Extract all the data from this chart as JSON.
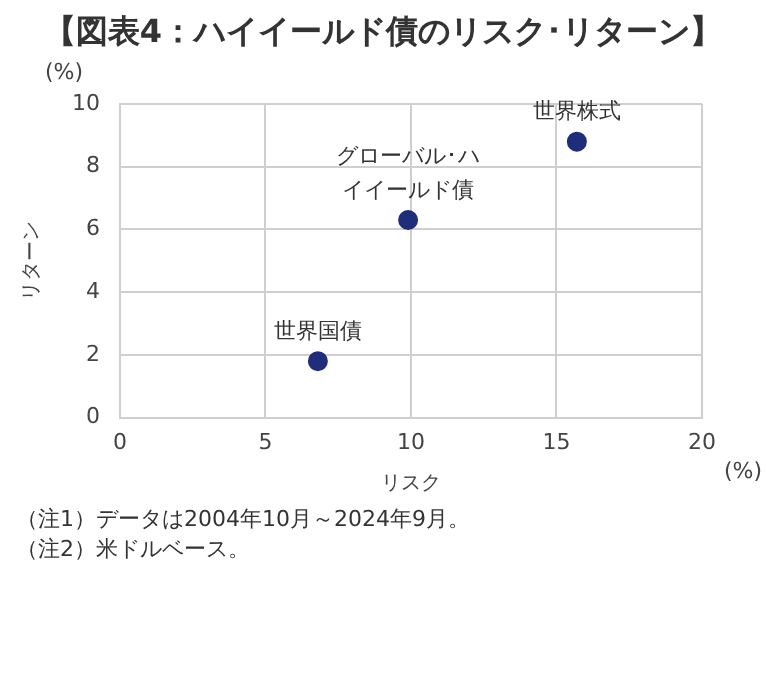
{
  "chart_data": {
    "type": "scatter",
    "title": "【図表4：ハイイールド債のリスク･リターン】",
    "xlabel": "リスク",
    "ylabel": "リターン",
    "x": [
      6.8,
      9.9,
      15.7
    ],
    "series": [
      {
        "color": "#1f2d7b",
        "values": [
          1.8,
          6.3,
          8.8
        ]
      }
    ],
    "xlim": [
      0,
      20
    ],
    "xticks": [
      0,
      5,
      10,
      15,
      20
    ],
    "ylim": [
      0,
      10
    ],
    "yticks": [
      0,
      2,
      4,
      6,
      8,
      10
    ],
    "grid": true,
    "legend": false,
    "marker": "circle",
    "annotations": [
      {
        "text": "世界国債",
        "x": 6.8,
        "y": 1.8
      },
      {
        "text": "グローバル･ハイイールド債",
        "x": 9.9,
        "y": 6.3
      },
      {
        "text": "世界株式",
        "x": 15.7,
        "y": 8.8
      },
      "(%)",
      "(%)",
      "（注1）データは2004年10月～2024年9月。",
      "（注2）米ドルベース。"
    ]
  }
}
